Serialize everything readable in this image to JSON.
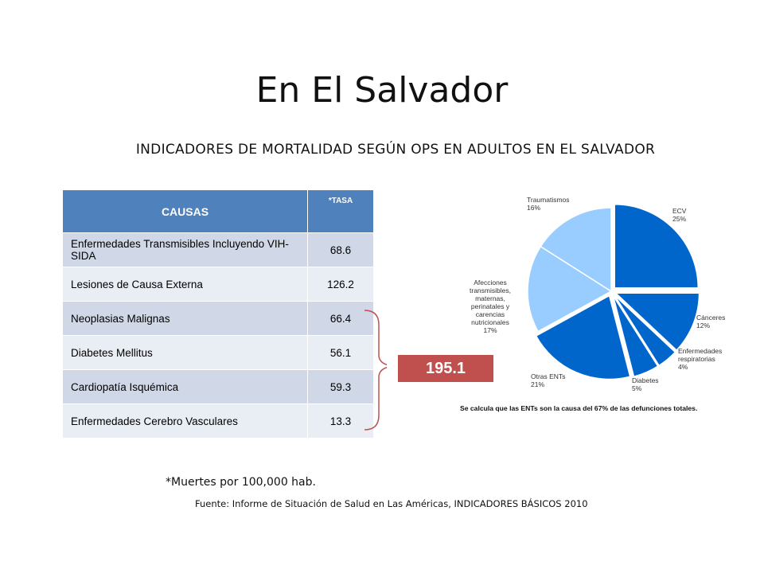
{
  "title": "En El Salvador",
  "subtitle": "INDICADORES DE MORTALIDAD SEGÚN OPS EN ADULTOS EN EL SALVADOR",
  "table": {
    "headers": [
      "CAUSAS",
      "*TASA"
    ],
    "rows": [
      {
        "cause": "Enfermedades Transmisibles Incluyendo VIH-SIDA",
        "rate": "68.6"
      },
      {
        "cause": "Lesiones de Causa Externa",
        "rate": "126.2"
      },
      {
        "cause": "Neoplasias Malignas",
        "rate": "66.4"
      },
      {
        "cause": "Diabetes Mellitus",
        "rate": "56.1"
      },
      {
        "cause": "Cardiopatía Isquémica",
        "rate": "59.3"
      },
      {
        "cause": "Enfermedades Cerebro Vasculares",
        "rate": "13.3"
      }
    ]
  },
  "total_badge": "195.1",
  "colors": {
    "table_header": "#4f81bd",
    "row_odd": "#d0d8e8",
    "row_even": "#e9edf4",
    "badge": "#c0504d",
    "pie_blue": "#0066cc",
    "pie_light": "#99ccff"
  },
  "chart_data": {
    "type": "pie",
    "slices": [
      {
        "label": "ECV",
        "value": 25,
        "pct": "25%",
        "color": "#0066cc"
      },
      {
        "label": "Cánceres",
        "value": 12,
        "pct": "12%",
        "color": "#0066cc"
      },
      {
        "label": "Enfermedades respiratorias",
        "value": 4,
        "pct": "4%",
        "color": "#0066cc"
      },
      {
        "label": "Diabetes",
        "value": 5,
        "pct": "5%",
        "color": "#0066cc"
      },
      {
        "label": "Otras ENTs",
        "value": 21,
        "pct": "21%",
        "color": "#0066cc"
      },
      {
        "label": "Afecciones transmisibles, maternas, perinatales y carencias nutricionales",
        "value": 17,
        "pct": "17%",
        "color": "#99ccff"
      },
      {
        "label": "Traumatismos",
        "value": 16,
        "pct": "16%",
        "color": "#99ccff"
      }
    ],
    "note": "Se calcula que las ENTs son la causa del 67% de las defunciones totales."
  },
  "footnote": "*Muertes por 100,000 hab.",
  "source": "Fuente: Informe de Situación de Salud en Las Américas, INDICADORES BÁSICOS 2010"
}
